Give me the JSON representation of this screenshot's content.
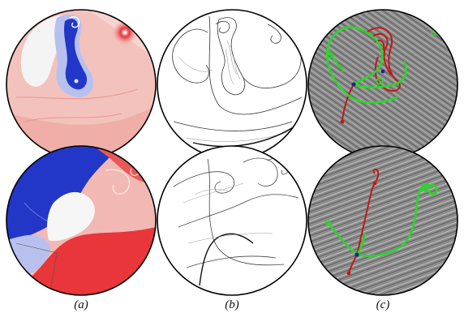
{
  "figure": {
    "captions": [
      "(a)",
      "(b)",
      "(c)"
    ],
    "panels": [
      {
        "id": "a-top",
        "kind": "scalar-field"
      },
      {
        "id": "b-top",
        "kind": "line-field"
      },
      {
        "id": "c-top",
        "kind": "lic-topology"
      },
      {
        "id": "a-bottom",
        "kind": "scalar-field"
      },
      {
        "id": "b-bottom",
        "kind": "line-field"
      },
      {
        "id": "c-bottom",
        "kind": "lic-topology"
      }
    ],
    "colors": {
      "red": "#e8363a",
      "light_red": "#f2b8b4",
      "blue": "#2236c8",
      "light_blue": "#b8c0ee",
      "gray_lic": "#8e8e8e",
      "green": "#27d827",
      "dark_red": "#c21818"
    }
  }
}
